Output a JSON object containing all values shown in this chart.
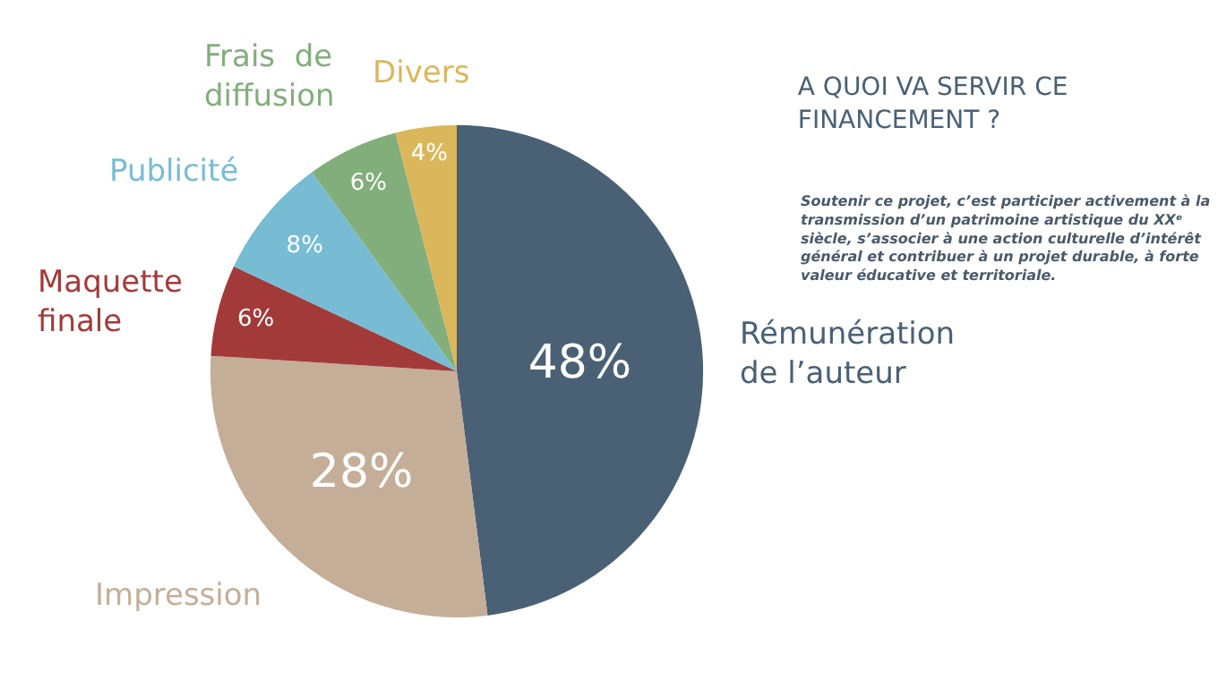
{
  "chart_data": {
    "type": "pie",
    "title": "A QUOI VA SERVIR CE FINANCEMENT ?",
    "annotations": [
      "Soutenir ce projet, c’est participer activement à la transmission d’un patrimoine artistique du XXᵉ siècle, s’associer à une action culturelle d’intérêt général et contribuer à un projet durable, à forte valeur éducative et territoriale."
    ],
    "categories": [
      "Rémunération\nde l’auteur",
      "Impression",
      "Maquette\nfinale",
      "Publicité",
      "Frais  de\ndiffusion",
      "Divers"
    ],
    "values": [
      48,
      28,
      6,
      8,
      6,
      4
    ],
    "value_labels": [
      "48%",
      "28%",
      "6%",
      "8%",
      "6%",
      "4%"
    ],
    "colors": [
      "#4a6074",
      "#c4ae98",
      "#a33a3a",
      "#78bcd4",
      "#82ae7c",
      "#dab75a"
    ],
    "legend": false
  }
}
